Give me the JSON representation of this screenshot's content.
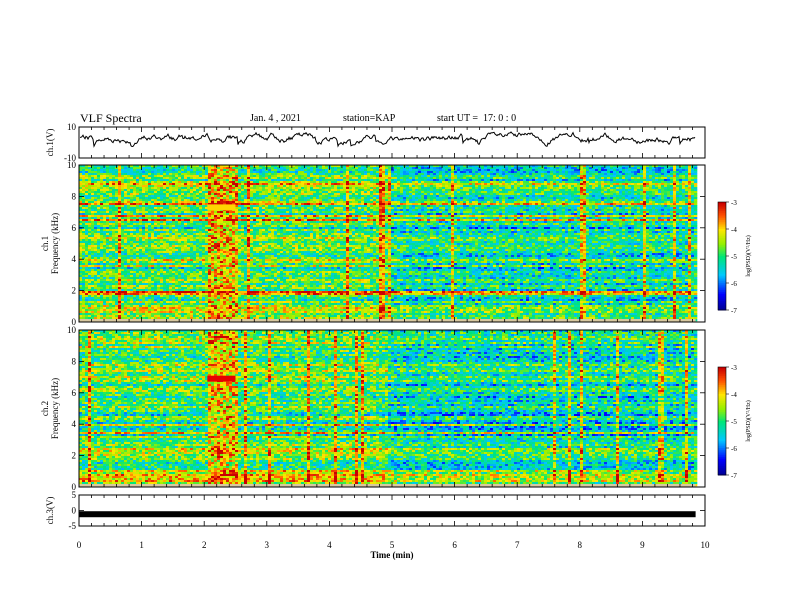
{
  "header": {
    "title": "VLF Spectra",
    "date": "Jan. 4 , 2021",
    "station": "station=KAP",
    "start": "start UT =  17: 0 : 0"
  },
  "chart_data": [
    {
      "type": "line",
      "panel": "ch1-waveform",
      "ylabel": "ch.1(V)",
      "ylim": [
        -10,
        10
      ],
      "yticks": [
        10,
        -10
      ],
      "xlim": [
        0,
        10
      ],
      "line_color": "#000000",
      "description_values": {
        "mean": 3,
        "amplitude_range": [
          -2,
          8
        ]
      }
    },
    {
      "type": "heatmap",
      "panel": "ch1-spectrogram",
      "ylabel": "ch.1\nFrequency (kHz)",
      "ylim": [
        0,
        10
      ],
      "yticks": [
        0,
        2,
        4,
        6,
        8,
        10
      ],
      "xlim": [
        0,
        9.85
      ],
      "colorbar": {
        "label": "log(PSD)(V²/Hz)",
        "range": [
          -7,
          -3
        ],
        "ticks": [
          -3,
          -4,
          -5,
          -6,
          -7
        ]
      },
      "burst": {
        "x": [
          2.05,
          2.5
        ],
        "level": -3.4
      },
      "tone_line": {
        "freq_khz": 7.3,
        "x": [
          2.05,
          2.5
        ]
      }
    },
    {
      "type": "heatmap",
      "panel": "ch2-spectrogram",
      "ylabel": "ch.2\nFrequency (kHz)",
      "ylim": [
        0,
        10
      ],
      "yticks": [
        0,
        2,
        4,
        6,
        8,
        10
      ],
      "xlim": [
        0,
        9.85
      ],
      "colorbar": {
        "label": "log(PSD)(V²/Hz)",
        "range": [
          -7,
          -3
        ],
        "ticks": [
          -3,
          -4,
          -5,
          -6,
          -7
        ]
      },
      "burst": {
        "x": [
          2.05,
          2.5
        ],
        "level": -3.4
      },
      "tone_line": {
        "freq_khz": 6.9,
        "x": [
          2.05,
          2.5
        ]
      }
    },
    {
      "type": "line",
      "panel": "ch3-waveform",
      "ylabel": "ch.3(V)",
      "ylim": [
        -5,
        5
      ],
      "yticks": [
        5,
        0,
        -5
      ],
      "xlim": [
        0,
        10
      ],
      "value": -1.2,
      "line_color": "#000000"
    }
  ],
  "x_axis": {
    "label": "Time (min)",
    "ticks": [
      "0",
      "1",
      "2",
      "3",
      "4",
      "5",
      "6",
      "7",
      "8",
      "9",
      "10"
    ]
  }
}
